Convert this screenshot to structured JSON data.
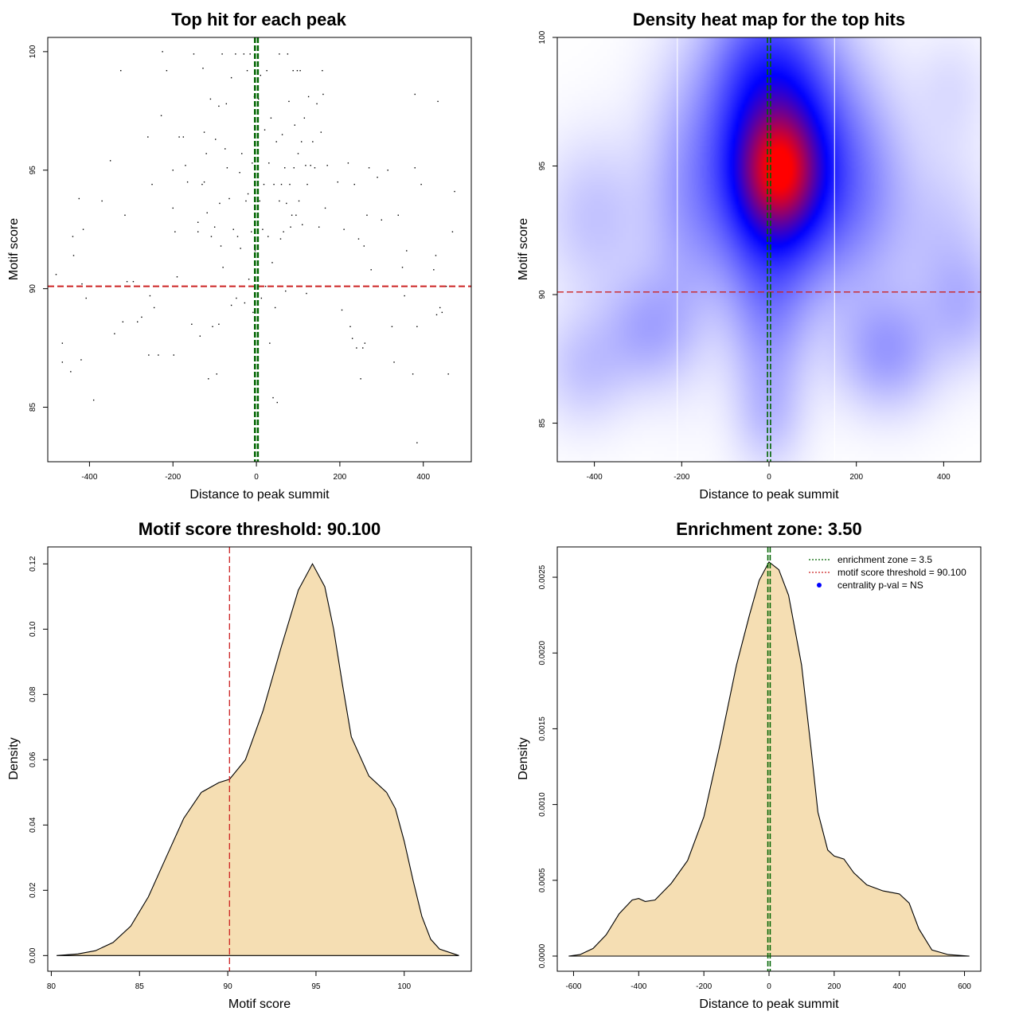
{
  "colors": {
    "threshold": "#cc2222",
    "zone": "#006400",
    "fill": "#f5deb3",
    "heat_low": "#ffffff",
    "heat_mid": "#0000ff",
    "heat_high": "#ff0000",
    "pval_dot": "#0000ff"
  },
  "chart_data": [
    {
      "type": "scatter",
      "title": "Top hit for each peak",
      "xlabel": "Distance to peak summit",
      "ylabel": "Motif score",
      "xlim": [
        -500,
        515
      ],
      "ylim": [
        82.7,
        100.6
      ],
      "xticks": [
        "-400",
        "-200",
        "0",
        "200",
        "400"
      ],
      "yticks": [
        "85",
        "90",
        "95",
        "100"
      ],
      "threshold": 90.1,
      "zone": [
        -3.5,
        3.5
      ],
      "points": [
        [
          -480,
          90.6
        ],
        [
          -465,
          87.7
        ],
        [
          -465,
          86.9
        ],
        [
          -445,
          86.5
        ],
        [
          -440,
          92.2
        ],
        [
          -438,
          91.4
        ],
        [
          -425,
          93.8
        ],
        [
          -420,
          87.0
        ],
        [
          -418,
          90.2
        ],
        [
          -415,
          92.5
        ],
        [
          -408,
          89.6
        ],
        [
          -390,
          85.3
        ],
        [
          -370,
          93.7
        ],
        [
          -350,
          95.4
        ],
        [
          -340,
          88.1
        ],
        [
          -325,
          99.2
        ],
        [
          -320,
          88.6
        ],
        [
          -315,
          93.1
        ],
        [
          -310,
          90.3
        ],
        [
          -295,
          90.3
        ],
        [
          -285,
          88.6
        ],
        [
          -275,
          88.8
        ],
        [
          -260,
          96.4
        ],
        [
          -258,
          87.2
        ],
        [
          -255,
          89.7
        ],
        [
          -250,
          94.4
        ],
        [
          -245,
          89.2
        ],
        [
          -235,
          87.2
        ],
        [
          -228,
          97.3
        ],
        [
          -225,
          100.0
        ],
        [
          -215,
          99.2
        ],
        [
          -200,
          93.4
        ],
        [
          -198,
          87.2
        ],
        [
          -195,
          92.4
        ],
        [
          -190,
          90.5
        ],
        [
          -185,
          96.4
        ],
        [
          -175,
          96.4
        ],
        [
          -170,
          95.2
        ],
        [
          -165,
          94.5
        ],
        [
          -155,
          88.5
        ],
        [
          -150,
          99.9
        ],
        [
          -148,
          90.1
        ],
        [
          -140,
          92.4
        ],
        [
          -135,
          88.0
        ],
        [
          -130,
          94.4
        ],
        [
          -128,
          99.3
        ],
        [
          -125,
          96.6
        ],
        [
          -120,
          95.7
        ],
        [
          -118,
          93.2
        ],
        [
          -115,
          86.2
        ],
        [
          -110,
          98.0
        ],
        [
          -108,
          92.2
        ],
        [
          -105,
          88.4
        ],
        [
          -100,
          92.6
        ],
        [
          -98,
          96.3
        ],
        [
          -95,
          86.4
        ],
        [
          -90,
          88.5
        ],
        [
          -88,
          93.6
        ],
        [
          -85,
          91.8
        ],
        [
          -82,
          99.9
        ],
        [
          -80,
          90.9
        ],
        [
          -75,
          95.9
        ],
        [
          -72,
          97.8
        ],
        [
          -70,
          95.1
        ],
        [
          -65,
          93.8
        ],
        [
          -60,
          89.3
        ],
        [
          -55,
          92.5
        ],
        [
          -50,
          99.9
        ],
        [
          -48,
          89.6
        ],
        [
          -45,
          92.2
        ],
        [
          -40,
          94.9
        ],
        [
          -38,
          91.7
        ],
        [
          -35,
          95.7
        ],
        [
          -30,
          99.9
        ],
        [
          -28,
          89.4
        ],
        [
          -25,
          93.7
        ],
        [
          -22,
          99.2
        ],
        [
          -20,
          94.0
        ],
        [
          -18,
          90.4
        ],
        [
          -15,
          99.9
        ],
        [
          -12,
          92.4
        ],
        [
          -10,
          95.3
        ],
        [
          -8,
          89.0
        ],
        [
          -5,
          98.1
        ],
        [
          -3,
          91.6
        ],
        [
          5,
          98.0
        ],
        [
          8,
          93.7
        ],
        [
          10,
          99.0
        ],
        [
          12,
          89.6
        ],
        [
          15,
          92.5
        ],
        [
          18,
          94.4
        ],
        [
          20,
          96.7
        ],
        [
          22,
          90.1
        ],
        [
          25,
          99.2
        ],
        [
          28,
          92.2
        ],
        [
          30,
          95.3
        ],
        [
          32,
          87.7
        ],
        [
          35,
          97.2
        ],
        [
          38,
          91.1
        ],
        [
          40,
          85.4
        ],
        [
          42,
          94.4
        ],
        [
          45,
          89.2
        ],
        [
          48,
          96.2
        ],
        [
          50,
          85.2
        ],
        [
          55,
          99.9
        ],
        [
          58,
          92.1
        ],
        [
          60,
          94.4
        ],
        [
          62,
          96.5
        ],
        [
          65,
          92.4
        ],
        [
          68,
          95.1
        ],
        [
          70,
          89.9
        ],
        [
          72,
          93.6
        ],
        [
          75,
          99.9
        ],
        [
          78,
          97.9
        ],
        [
          80,
          94.4
        ],
        [
          82,
          92.6
        ],
        [
          85,
          93.1
        ],
        [
          88,
          99.2
        ],
        [
          90,
          95.1
        ],
        [
          92,
          96.9
        ],
        [
          95,
          93.1
        ],
        [
          98,
          99.2
        ],
        [
          100,
          95.7
        ],
        [
          102,
          93.7
        ],
        [
          105,
          99.2
        ],
        [
          108,
          96.2
        ],
        [
          110,
          92.7
        ],
        [
          115,
          97.2
        ],
        [
          118,
          95.2
        ],
        [
          120,
          89.8
        ],
        [
          122,
          94.4
        ],
        [
          125,
          98.1
        ],
        [
          130,
          95.2
        ],
        [
          135,
          96.2
        ],
        [
          140,
          95.1
        ],
        [
          145,
          97.8
        ],
        [
          150,
          92.6
        ],
        [
          155,
          96.6
        ],
        [
          158,
          99.2
        ],
        [
          160,
          98.2
        ],
        [
          165,
          93.4
        ],
        [
          170,
          95.2
        ],
        [
          195,
          94.5
        ],
        [
          198,
          90.1
        ],
        [
          205,
          89.1
        ],
        [
          210,
          92.5
        ],
        [
          220,
          95.3
        ],
        [
          225,
          88.4
        ],
        [
          230,
          87.9
        ],
        [
          235,
          94.4
        ],
        [
          240,
          87.5
        ],
        [
          245,
          92.1
        ],
        [
          250,
          86.2
        ],
        [
          255,
          87.5
        ],
        [
          258,
          91.8
        ],
        [
          260,
          87.7
        ],
        [
          265,
          93.1
        ],
        [
          270,
          95.1
        ],
        [
          275,
          90.8
        ],
        [
          290,
          94.7
        ],
        [
          300,
          92.9
        ],
        [
          315,
          95.0
        ],
        [
          325,
          88.4
        ],
        [
          330,
          86.9
        ],
        [
          340,
          93.1
        ],
        [
          350,
          90.9
        ],
        [
          355,
          89.7
        ],
        [
          360,
          91.6
        ],
        [
          375,
          86.4
        ],
        [
          380,
          98.2
        ],
        [
          385,
          88.4
        ],
        [
          395,
          94.4
        ],
        [
          425,
          90.8
        ],
        [
          430,
          91.4
        ],
        [
          432,
          88.9
        ],
        [
          435,
          97.9
        ],
        [
          440,
          89.2
        ],
        [
          445,
          89.0
        ],
        [
          455,
          90.1
        ],
        [
          460,
          86.4
        ],
        [
          470,
          92.4
        ],
        [
          475,
          94.1
        ],
        [
          385,
          83.5
        ],
        [
          380,
          95.1
        ],
        [
          55,
          93.7
        ],
        [
          -90,
          97.7
        ],
        [
          -125,
          94.5
        ],
        [
          -60,
          98.9
        ],
        [
          -140,
          92.8
        ],
        [
          -200,
          95.0
        ]
      ]
    },
    {
      "type": "heatmap",
      "title": "Density heat map for the top hits",
      "xlabel": "Distance to peak summit",
      "ylabel": "Motif score",
      "xlim": [
        -485,
        485
      ],
      "ylim": [
        83.5,
        100.0
      ],
      "xticks": [
        "-400",
        "-200",
        "0",
        "200",
        "400"
      ],
      "yticks": [
        "85",
        "90",
        "95",
        "100"
      ],
      "threshold": 90.1,
      "zone": [
        -3.5,
        3.5
      ],
      "white_verticals": [
        -210,
        150
      ],
      "blobs": [
        {
          "x": 25,
          "y": 94.8,
          "sx": 130,
          "sy": 3.0,
          "w": 1.0
        },
        {
          "x": 25,
          "y": 94.8,
          "sx": 60,
          "sy": 1.6,
          "w": 0.9
        },
        {
          "x": 0,
          "y": 99.0,
          "sx": 90,
          "sy": 2.2,
          "w": 0.45
        },
        {
          "x": 0,
          "y": 89.0,
          "sx": 60,
          "sy": 3.0,
          "w": 0.25
        },
        {
          "x": -280,
          "y": 88.7,
          "sx": 70,
          "sy": 1.5,
          "w": 0.22
        },
        {
          "x": 270,
          "y": 87.8,
          "sx": 75,
          "sy": 1.5,
          "w": 0.28
        },
        {
          "x": -420,
          "y": 87.2,
          "sx": 70,
          "sy": 1.5,
          "w": 0.15
        },
        {
          "x": -400,
          "y": 93.0,
          "sx": 80,
          "sy": 2.0,
          "w": 0.15
        },
        {
          "x": -200,
          "y": 92.5,
          "sx": 60,
          "sy": 3.5,
          "w": 0.12
        },
        {
          "x": 230,
          "y": 93.5,
          "sx": 70,
          "sy": 2.5,
          "w": 0.12
        },
        {
          "x": 400,
          "y": 92.0,
          "sx": 80,
          "sy": 2.5,
          "w": 0.13
        },
        {
          "x": 450,
          "y": 89.5,
          "sx": 60,
          "sy": 1.5,
          "w": 0.15
        },
        {
          "x": 420,
          "y": 98.0,
          "sx": 60,
          "sy": 1.5,
          "w": 0.07
        },
        {
          "x": 0,
          "y": 85.2,
          "sx": 50,
          "sy": 1.2,
          "w": 0.08
        }
      ]
    },
    {
      "type": "area",
      "title": "Motif score threshold: 90.100",
      "xlabel": "Motif score",
      "ylabel": "Density",
      "xlim": [
        79.8,
        103.8
      ],
      "ylim": [
        -0.0048,
        0.1252
      ],
      "xticks": [
        "80",
        "85",
        "90",
        "95",
        "100"
      ],
      "yticks": [
        "0.00",
        "0.02",
        "0.04",
        "0.06",
        "0.08",
        "0.10",
        "0.12"
      ],
      "threshold": 90.1,
      "x": [
        80.3,
        81.5,
        82.5,
        83.5,
        84.5,
        85.5,
        86.5,
        87.5,
        88.5,
        89.5,
        90.1,
        91,
        92,
        93,
        94,
        94.8,
        95.5,
        96,
        96.5,
        97,
        98,
        99,
        99.5,
        100,
        100.5,
        101,
        101.5,
        102,
        103.1
      ],
      "y": [
        0.0,
        0.0005,
        0.0015,
        0.004,
        0.009,
        0.018,
        0.03,
        0.042,
        0.05,
        0.053,
        0.054,
        0.06,
        0.075,
        0.094,
        0.112,
        0.12,
        0.113,
        0.1,
        0.083,
        0.067,
        0.055,
        0.05,
        0.045,
        0.035,
        0.023,
        0.012,
        0.005,
        0.002,
        0.0
      ]
    },
    {
      "type": "area",
      "title": "Enrichment zone: 3.50",
      "xlabel": "Distance to peak summit",
      "ylabel": "Density",
      "xlim": [
        -650,
        650
      ],
      "ylim": [
        -0.0001,
        0.0027
      ],
      "xticks": [
        "-600",
        "-400",
        "-200",
        "0",
        "200",
        "400",
        "600"
      ],
      "yticks": [
        "0.0000",
        "0.0005",
        "0.0010",
        "0.0015",
        "0.0020",
        "0.0025"
      ],
      "zone": [
        -3.5,
        3.5
      ],
      "x": [
        -615,
        -580,
        -540,
        -500,
        -460,
        -420,
        -400,
        -380,
        -350,
        -300,
        -250,
        -200,
        -150,
        -100,
        -60,
        -30,
        0,
        30,
        60,
        100,
        130,
        150,
        180,
        200,
        230,
        260,
        300,
        350,
        400,
        430,
        460,
        500,
        550,
        615
      ],
      "y": [
        0.0,
        1e-05,
        5e-05,
        0.00014,
        0.00028,
        0.00037,
        0.00038,
        0.00036,
        0.00037,
        0.00048,
        0.00063,
        0.00092,
        0.0014,
        0.00192,
        0.00225,
        0.00248,
        0.0026,
        0.00255,
        0.00238,
        0.00192,
        0.00135,
        0.00095,
        0.0007,
        0.00066,
        0.00064,
        0.00055,
        0.00047,
        0.00043,
        0.00041,
        0.00035,
        0.00018,
        4e-05,
        1e-05,
        0.0
      ],
      "legend": {
        "position": "top-right",
        "items": [
          {
            "label": "enrichment zone = 3.5",
            "kind": "dotted-line",
            "color": "#006400"
          },
          {
            "label": "motif score threshold = 90.100",
            "kind": "dotted-line",
            "color": "#cc2222"
          },
          {
            "label": "centrality p-val = NS",
            "kind": "dot",
            "color": "#0000ff"
          }
        ]
      }
    }
  ]
}
